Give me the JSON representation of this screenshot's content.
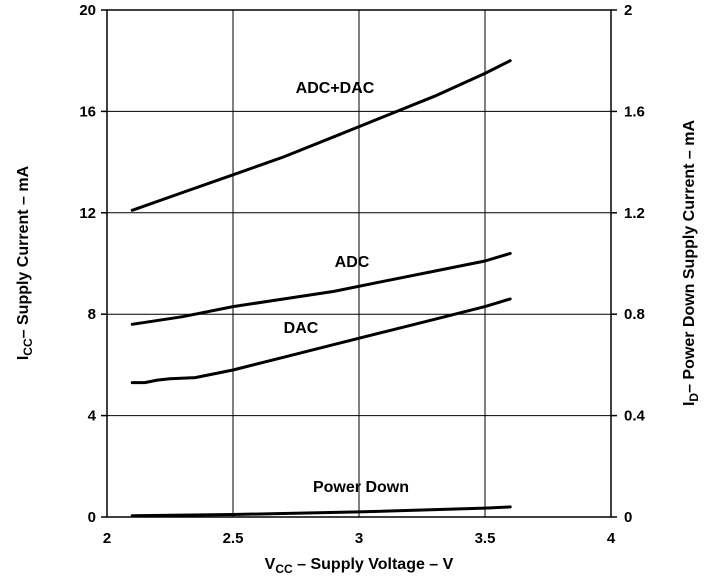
{
  "chart_data": {
    "type": "line",
    "xlabel": {
      "main": "V",
      "sub": "CC",
      "rest": " – Supply Voltage – V"
    },
    "ylabel_left": {
      "main": "I",
      "sub": "CC",
      "rest": "– Supply Current – mA"
    },
    "ylabel_right": {
      "main": "I",
      "sub": "D",
      "rest": "– Power Down Supply Current – mA"
    },
    "xlim": [
      2,
      4
    ],
    "ylim_left": [
      0,
      20
    ],
    "ylim_right": [
      0,
      2
    ],
    "x_ticks": [
      "2",
      "2.5",
      "3",
      "3.5",
      "4"
    ],
    "y_ticks_left": [
      "0",
      "4",
      "8",
      "12",
      "16",
      "20"
    ],
    "y_ticks_right": [
      "0",
      "0.4",
      "0.8",
      "1.2",
      "1.6",
      "2"
    ],
    "grid": true,
    "series": [
      {
        "name": "ADC+DAC",
        "axis": "left",
        "x": [
          2.1,
          2.3,
          2.5,
          2.7,
          2.9,
          3.1,
          3.3,
          3.5,
          3.6
        ],
        "y": [
          12.1,
          12.8,
          13.5,
          14.2,
          15.0,
          15.8,
          16.6,
          17.5,
          18.0
        ]
      },
      {
        "name": "ADC",
        "axis": "left",
        "x": [
          2.1,
          2.3,
          2.5,
          2.7,
          2.9,
          3.1,
          3.3,
          3.5,
          3.6
        ],
        "y": [
          7.6,
          7.9,
          8.3,
          8.6,
          8.9,
          9.3,
          9.7,
          10.1,
          10.4
        ]
      },
      {
        "name": "DAC",
        "axis": "left",
        "x": [
          2.1,
          2.15,
          2.2,
          2.25,
          2.35,
          2.5,
          2.7,
          2.9,
          3.1,
          3.3,
          3.5,
          3.6
        ],
        "y": [
          5.3,
          5.3,
          5.4,
          5.45,
          5.5,
          5.8,
          6.3,
          6.8,
          7.3,
          7.8,
          8.3,
          8.6
        ]
      },
      {
        "name": "Power Down",
        "axis": "right",
        "x": [
          2.1,
          2.5,
          3.0,
          3.5,
          3.6
        ],
        "y": [
          0.005,
          0.01,
          0.02,
          0.035,
          0.04
        ]
      }
    ]
  }
}
